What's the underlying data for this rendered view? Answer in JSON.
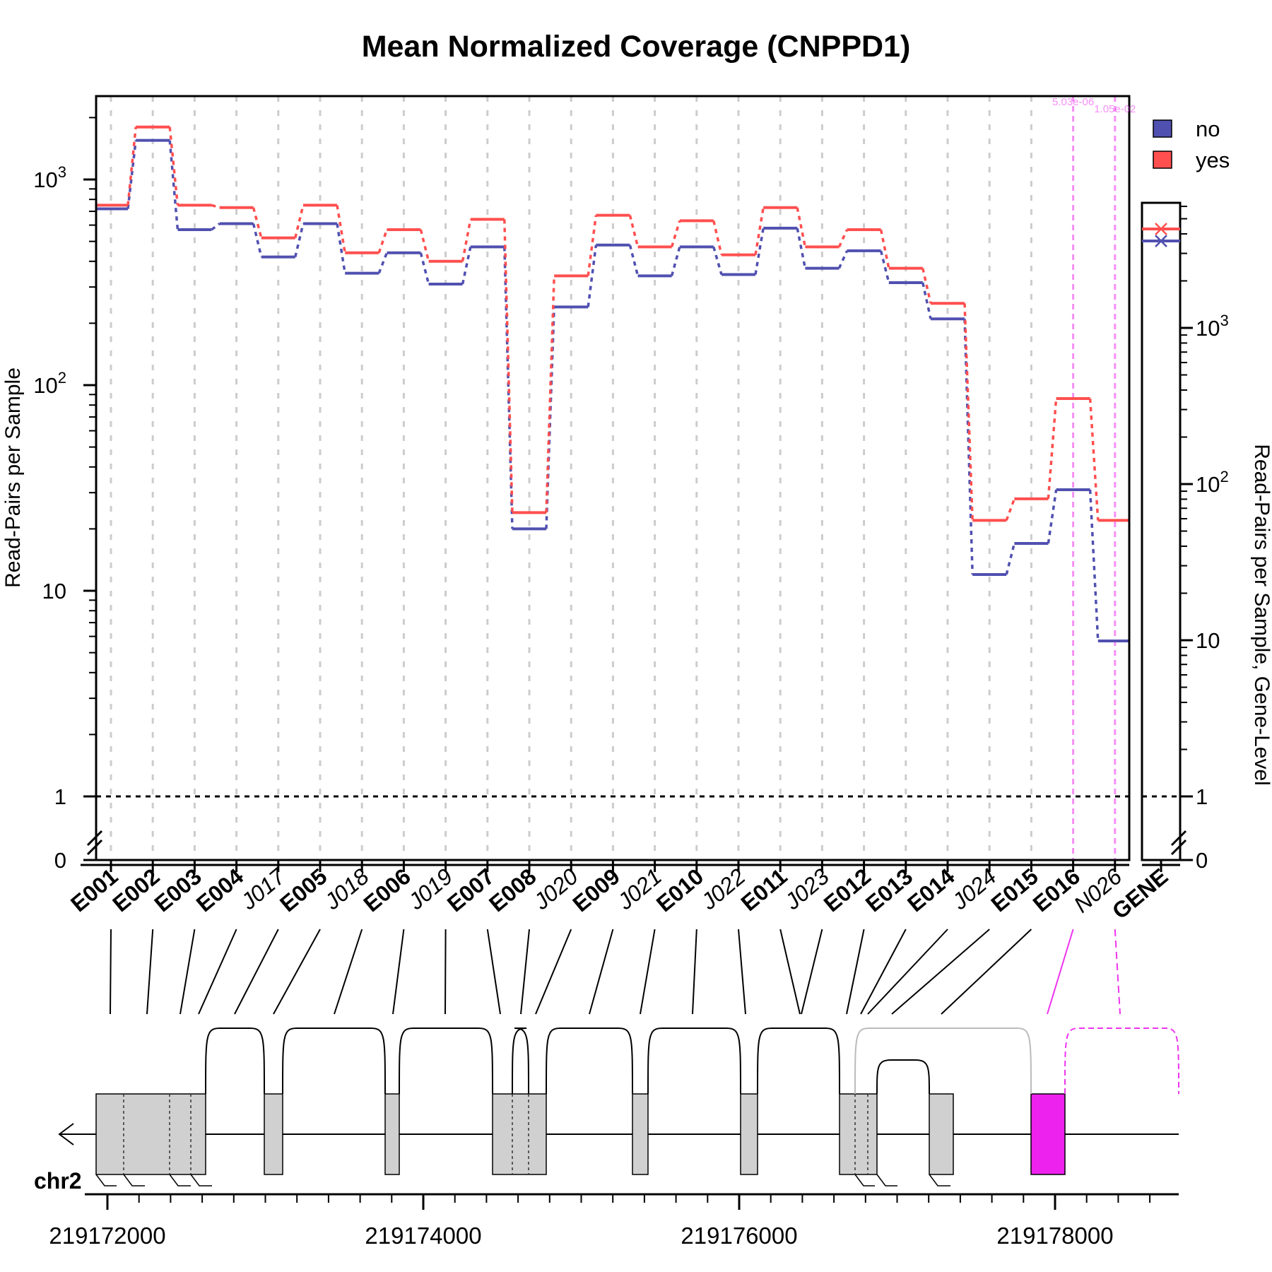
{
  "chart_data": {
    "type": "line",
    "title": "Mean Normalized Coverage (CNPPD1)",
    "ylabel": "Read-Pairs per Sample",
    "ylabel_right": "Read-Pairs per Sample, Gene-Level",
    "yscale": "log",
    "ylim": [
      0,
      2300
    ],
    "y_ticks": [
      {
        "value": 0,
        "label": "0"
      },
      {
        "value": 1,
        "label": "1"
      },
      {
        "value": 10,
        "label": "10"
      },
      {
        "value": 100,
        "label": "10",
        "exp": "2"
      },
      {
        "value": 1000,
        "label": "10",
        "exp": "3"
      }
    ],
    "y_ticks_right": [
      {
        "value": 0,
        "label": "0"
      },
      {
        "value": 1,
        "label": "1"
      },
      {
        "value": 10,
        "label": "10"
      },
      {
        "value": 100,
        "label": "10",
        "exp": "2"
      },
      {
        "value": 1000,
        "label": "10",
        "exp": "3"
      }
    ],
    "features": [
      {
        "label": "E001",
        "bold": true
      },
      {
        "label": "E002",
        "bold": true
      },
      {
        "label": "E003",
        "bold": true
      },
      {
        "label": "E004",
        "bold": true
      },
      {
        "label": "J017",
        "bold": false
      },
      {
        "label": "E005",
        "bold": true
      },
      {
        "label": "J018",
        "bold": false
      },
      {
        "label": "E006",
        "bold": true
      },
      {
        "label": "J019",
        "bold": false
      },
      {
        "label": "E007",
        "bold": true
      },
      {
        "label": "E008",
        "bold": true
      },
      {
        "label": "J020",
        "bold": false
      },
      {
        "label": "E009",
        "bold": true
      },
      {
        "label": "J021",
        "bold": false
      },
      {
        "label": "E010",
        "bold": true
      },
      {
        "label": "J022",
        "bold": false
      },
      {
        "label": "E011",
        "bold": true
      },
      {
        "label": "J023",
        "bold": false
      },
      {
        "label": "E012",
        "bold": true
      },
      {
        "label": "E013",
        "bold": true
      },
      {
        "label": "E014",
        "bold": true
      },
      {
        "label": "J024",
        "bold": false
      },
      {
        "label": "E015",
        "bold": true
      },
      {
        "label": "E016",
        "bold": true
      },
      {
        "label": "N026",
        "bold": false
      }
    ],
    "gene_label": "GENE",
    "series": [
      {
        "name": "no",
        "color": "#5050b0",
        "values": [
          720,
          1550,
          570,
          610,
          420,
          610,
          350,
          440,
          310,
          470,
          20,
          240,
          480,
          340,
          470,
          345,
          580,
          370,
          450,
          315,
          210,
          12,
          17,
          31,
          5.7
        ],
        "gene_value": 3600
      },
      {
        "name": "yes",
        "color": "#ff4f4f",
        "values": [
          750,
          1800,
          750,
          730,
          520,
          750,
          440,
          570,
          400,
          640,
          24,
          340,
          670,
          470,
          630,
          430,
          730,
          470,
          570,
          370,
          250,
          22,
          28,
          86,
          22
        ],
        "gene_value": 4300
      }
    ],
    "highlight_features": [
      "E016",
      "N026"
    ],
    "pvalues": [
      {
        "feature": "E016",
        "text": "5.03e-06"
      },
      {
        "feature": "N026",
        "text": "1.05e-02"
      }
    ],
    "highlight_color": "#ee33ee",
    "legend_position": "top-right",
    "grid": "vertical dashed per feature",
    "genome": {
      "chrom": "chr2",
      "ticks": [
        {
          "value": 219172000,
          "label": "219172000"
        },
        {
          "value": 219174000,
          "label": "219174000"
        },
        {
          "value": 219176000,
          "label": "219176000"
        },
        {
          "value": 219178000,
          "label": "219178000"
        }
      ],
      "strand": "minus"
    }
  }
}
